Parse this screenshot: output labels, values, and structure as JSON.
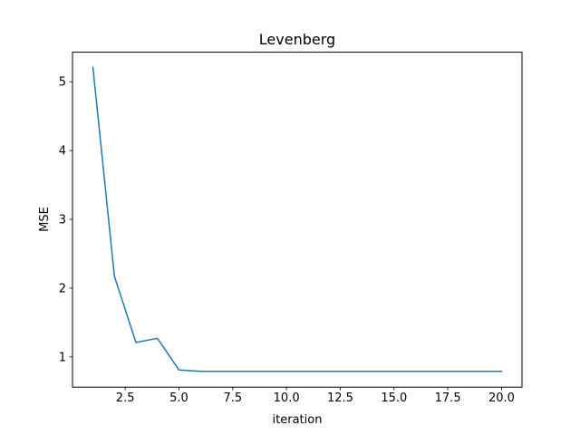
{
  "chart_data": {
    "type": "line",
    "title": "Levenberg",
    "xlabel": "iteration",
    "ylabel": "MSE",
    "xlim": [
      0.05,
      20.95
    ],
    "ylim": [
      0.56,
      5.43
    ],
    "x_ticks": [
      2.5,
      5.0,
      7.5,
      10.0,
      12.5,
      15.0,
      17.5,
      20.0
    ],
    "x_tick_labels": [
      "2.5",
      "5.0",
      "7.5",
      "10.0",
      "12.5",
      "15.0",
      "17.5",
      "20.0"
    ],
    "y_ticks": [
      1,
      2,
      3,
      4,
      5
    ],
    "y_tick_labels": [
      "1",
      "2",
      "3",
      "4",
      "5"
    ],
    "grid": false,
    "series": [
      {
        "color": "#1f77b4",
        "x": [
          1,
          2,
          3,
          4,
          5,
          6,
          7,
          8,
          9,
          10,
          11,
          12,
          13,
          14,
          15,
          16,
          17,
          18,
          19,
          20
        ],
        "y": [
          5.21,
          2.17,
          1.21,
          1.27,
          0.81,
          0.79,
          0.79,
          0.79,
          0.79,
          0.79,
          0.79,
          0.79,
          0.79,
          0.79,
          0.79,
          0.79,
          0.79,
          0.79,
          0.79,
          0.79
        ]
      }
    ]
  }
}
